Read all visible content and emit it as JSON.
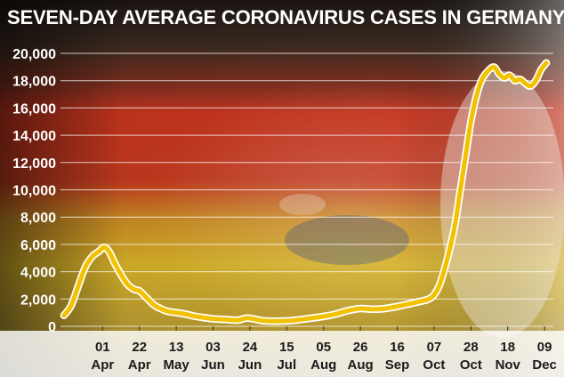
{
  "chart_data": {
    "type": "line",
    "title": "SEVEN-DAY AVERAGE CORONAVIRUS CASES IN GERMANY",
    "ylim": [
      0,
      20000
    ],
    "yticks": [
      {
        "value": 0,
        "label": "0"
      },
      {
        "value": 2000,
        "label": "2,000"
      },
      {
        "value": 4000,
        "label": "4,000"
      },
      {
        "value": 6000,
        "label": "6,000"
      },
      {
        "value": 8000,
        "label": "8,000"
      },
      {
        "value": 10000,
        "label": "10,000"
      },
      {
        "value": 12000,
        "label": "12,000"
      },
      {
        "value": 14000,
        "label": "14,000"
      },
      {
        "value": 16000,
        "label": "16,000"
      },
      {
        "value": 18000,
        "label": "18,000"
      },
      {
        "value": 20000,
        "label": "20,000"
      }
    ],
    "xticks": [
      {
        "date": "2020-04-01",
        "day": "01",
        "month": "Apr"
      },
      {
        "date": "2020-04-22",
        "day": "22",
        "month": "Apr"
      },
      {
        "date": "2020-05-13",
        "day": "13",
        "month": "May"
      },
      {
        "date": "2020-06-03",
        "day": "03",
        "month": "Jun"
      },
      {
        "date": "2020-06-24",
        "day": "24",
        "month": "Jun"
      },
      {
        "date": "2020-07-15",
        "day": "15",
        "month": "Jul"
      },
      {
        "date": "2020-08-05",
        "day": "05",
        "month": "Aug"
      },
      {
        "date": "2020-08-26",
        "day": "26",
        "month": "Aug"
      },
      {
        "date": "2020-09-16",
        "day": "16",
        "month": "Sep"
      },
      {
        "date": "2020-10-07",
        "day": "07",
        "month": "Oct"
      },
      {
        "date": "2020-10-28",
        "day": "28",
        "month": "Oct"
      },
      {
        "date": "2020-11-18",
        "day": "18",
        "month": "Nov"
      },
      {
        "date": "2020-12-09",
        "day": "09",
        "month": "Dec"
      }
    ],
    "series": [
      {
        "color": "#f2c200",
        "points": [
          [
            "2020-03-10",
            800
          ],
          [
            "2020-03-14",
            1500
          ],
          [
            "2020-03-18",
            2900
          ],
          [
            "2020-03-22",
            4300
          ],
          [
            "2020-03-26",
            5100
          ],
          [
            "2020-03-30",
            5500
          ],
          [
            "2020-04-02",
            5800
          ],
          [
            "2020-04-05",
            5400
          ],
          [
            "2020-04-08",
            4600
          ],
          [
            "2020-04-11",
            3900
          ],
          [
            "2020-04-15",
            3100
          ],
          [
            "2020-04-19",
            2700
          ],
          [
            "2020-04-22",
            2600
          ],
          [
            "2020-04-26",
            2100
          ],
          [
            "2020-04-30",
            1600
          ],
          [
            "2020-05-04",
            1300
          ],
          [
            "2020-05-08",
            1100
          ],
          [
            "2020-05-13",
            1000
          ],
          [
            "2020-05-18",
            900
          ],
          [
            "2020-05-23",
            750
          ],
          [
            "2020-05-28",
            650
          ],
          [
            "2020-06-03",
            550
          ],
          [
            "2020-06-10",
            500
          ],
          [
            "2020-06-17",
            450
          ],
          [
            "2020-06-22",
            600
          ],
          [
            "2020-06-26",
            550
          ],
          [
            "2020-07-01",
            420
          ],
          [
            "2020-07-08",
            380
          ],
          [
            "2020-07-15",
            400
          ],
          [
            "2020-07-22",
            480
          ],
          [
            "2020-07-29",
            600
          ],
          [
            "2020-08-05",
            720
          ],
          [
            "2020-08-12",
            900
          ],
          [
            "2020-08-19",
            1150
          ],
          [
            "2020-08-26",
            1300
          ],
          [
            "2020-09-02",
            1250
          ],
          [
            "2020-09-09",
            1300
          ],
          [
            "2020-09-16",
            1450
          ],
          [
            "2020-09-23",
            1650
          ],
          [
            "2020-09-30",
            1850
          ],
          [
            "2020-10-04",
            2000
          ],
          [
            "2020-10-07",
            2300
          ],
          [
            "2020-10-10",
            3000
          ],
          [
            "2020-10-13",
            4200
          ],
          [
            "2020-10-16",
            5700
          ],
          [
            "2020-10-19",
            7500
          ],
          [
            "2020-10-22",
            10000
          ],
          [
            "2020-10-25",
            12500
          ],
          [
            "2020-10-28",
            15000
          ],
          [
            "2020-10-31",
            16800
          ],
          [
            "2020-11-03",
            18000
          ],
          [
            "2020-11-06",
            18600
          ],
          [
            "2020-11-10",
            19000
          ],
          [
            "2020-11-13",
            18500
          ],
          [
            "2020-11-16",
            18200
          ],
          [
            "2020-11-19",
            18400
          ],
          [
            "2020-11-22",
            18000
          ],
          [
            "2020-11-25",
            18100
          ],
          [
            "2020-11-28",
            17800
          ],
          [
            "2020-12-01",
            17600
          ],
          [
            "2020-12-04",
            18000
          ],
          [
            "2020-12-07",
            18800
          ],
          [
            "2020-12-10",
            19300
          ]
        ]
      }
    ],
    "grid": true
  }
}
